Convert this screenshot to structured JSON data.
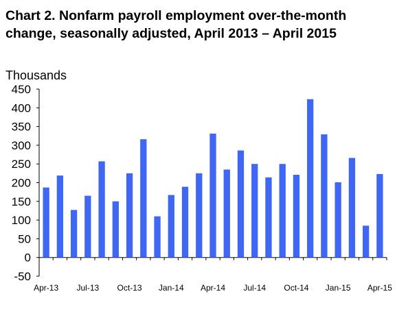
{
  "title": {
    "line1": "Chart 2. Nonfarm payroll employment over-the-month",
    "line2": "change, seasonally adjusted, April 2013 – April 2015"
  },
  "chart_data": {
    "type": "bar",
    "title": "Chart 2. Nonfarm payroll employment over-the-month change, seasonally adjusted, April 2013 – April 2015",
    "ylabel": "Thousands",
    "xlabel": "",
    "ylim": [
      -50,
      450
    ],
    "yticks": [
      -50,
      0,
      50,
      100,
      150,
      200,
      250,
      300,
      350,
      400,
      450
    ],
    "grid": false,
    "legend": "none",
    "bar_color": "#3f67f4",
    "categories": [
      "Apr-13",
      "May-13",
      "Jun-13",
      "Jul-13",
      "Aug-13",
      "Sep-13",
      "Oct-13",
      "Nov-13",
      "Dec-13",
      "Jan-14",
      "Feb-14",
      "Mar-14",
      "Apr-14",
      "May-14",
      "Jun-14",
      "Jul-14",
      "Aug-14",
      "Sep-14",
      "Oct-14",
      "Nov-14",
      "Dec-14",
      "Jan-15",
      "Feb-15",
      "Mar-15",
      "Apr-15"
    ],
    "values": [
      187,
      219,
      127,
      165,
      257,
      150,
      225,
      316,
      110,
      167,
      189,
      225,
      331,
      235,
      286,
      250,
      214,
      250,
      221,
      423,
      329,
      201,
      266,
      85,
      223
    ],
    "x_tick_labels": [
      "Apr-13",
      "Jul-13",
      "Oct-13",
      "Jan-14",
      "Apr-14",
      "Jul-14",
      "Oct-14",
      "Jan-15",
      "Apr-15"
    ]
  }
}
